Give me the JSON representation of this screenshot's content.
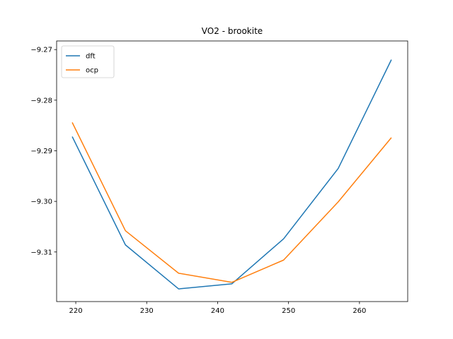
{
  "chart_data": {
    "type": "line",
    "title": "VO2 - brookite",
    "xlabel": "",
    "ylabel": "",
    "xlim": [
      217.3,
      266.8
    ],
    "ylim": [
      -9.3198,
      -9.2683
    ],
    "xticks": [
      220,
      230,
      240,
      250,
      260
    ],
    "yticks": [
      -9.27,
      -9.28,
      -9.29,
      -9.3,
      -9.31
    ],
    "xtick_labels": [
      "220",
      "230",
      "240",
      "250",
      "260"
    ],
    "ytick_labels": [
      "−9.27",
      "−9.28",
      "−9.29",
      "−9.30",
      "−9.31"
    ],
    "legend_position": "top-left",
    "grid": false,
    "series": [
      {
        "name": "dft",
        "color": "#1f77b4",
        "x": [
          219.5,
          227.0,
          234.5,
          242.0,
          249.3,
          257.0,
          264.5
        ],
        "y": [
          -9.2872,
          -9.3086,
          -9.3173,
          -9.3163,
          -9.3074,
          -9.2935,
          -9.272
        ]
      },
      {
        "name": "ocp",
        "color": "#ff7f0e",
        "x": [
          219.5,
          227.0,
          234.5,
          242.0,
          249.3,
          257.0,
          264.5
        ],
        "y": [
          -9.2844,
          -9.3058,
          -9.3142,
          -9.316,
          -9.3116,
          -9.3001,
          -9.2874
        ]
      }
    ]
  }
}
